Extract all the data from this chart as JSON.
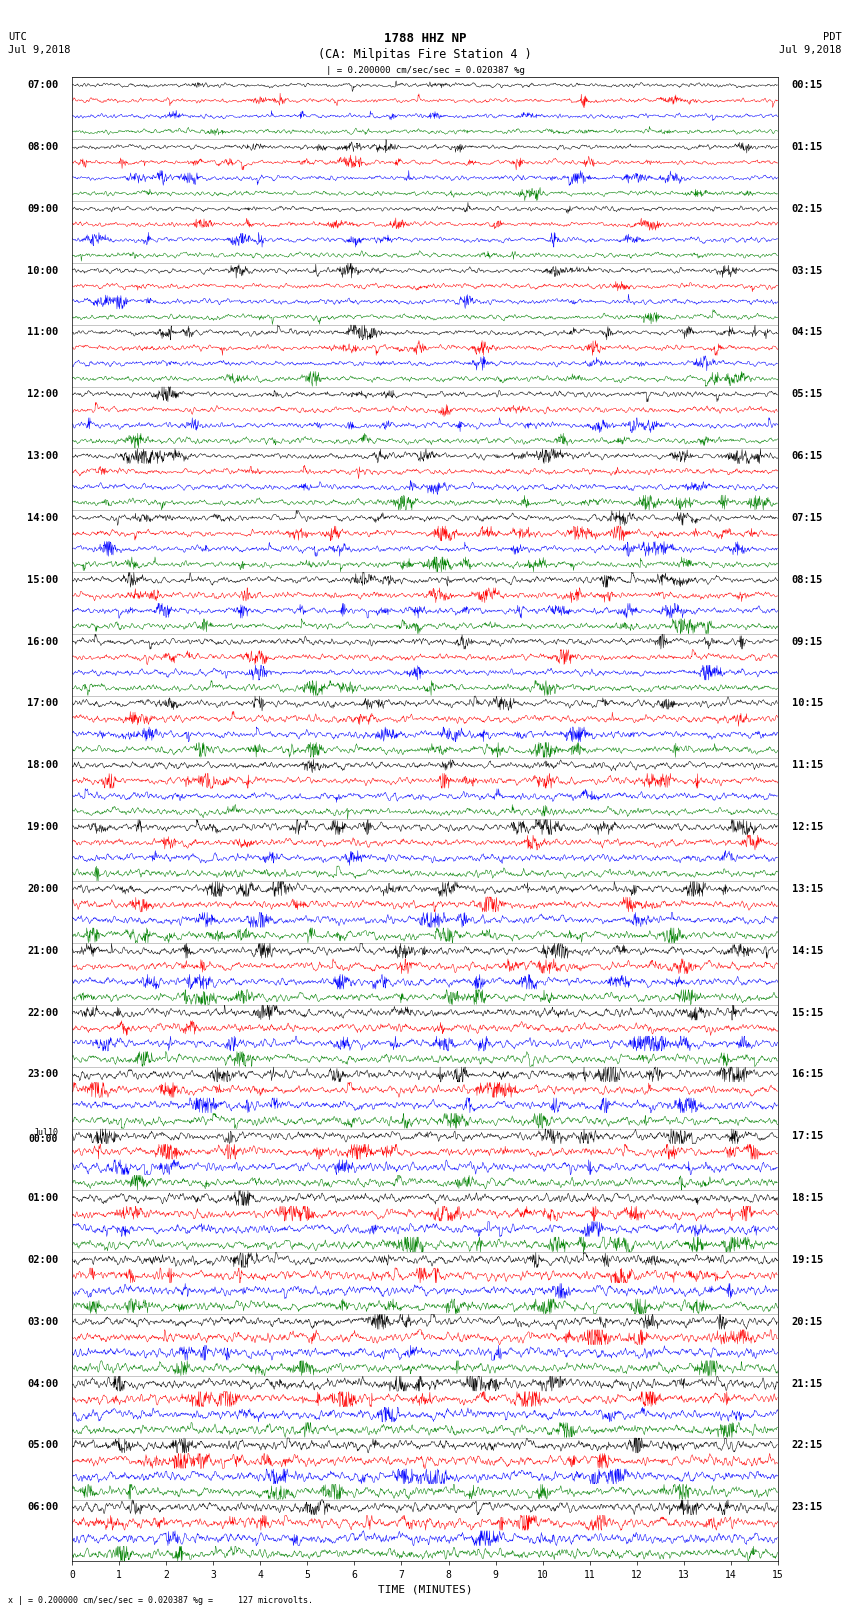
{
  "title_line1": "1788 HHZ NP",
  "title_line2": "(CA: Milpitas Fire Station 4 )",
  "left_header_line1": "UTC",
  "left_header_line2": "Jul 9,2018",
  "right_header_line1": "PDT",
  "right_header_line2": "Jul 9,2018",
  "scale_text": "| = 0.200000 cm/sec/sec = 0.020387 %g",
  "bottom_text": "x | = 0.200000 cm/sec/sec = 0.020387 %g =     127 microvolts.",
  "xlabel": "TIME (MINUTES)",
  "minutes_per_row": 15,
  "colors_cycle": [
    "black",
    "red",
    "blue",
    "green"
  ],
  "num_rows": 96,
  "background_color": "white",
  "fig_width": 8.5,
  "fig_height": 16.13,
  "left_time_labels": [
    "07:00",
    "",
    "",
    "",
    "08:00",
    "",
    "",
    "",
    "09:00",
    "",
    "",
    "",
    "10:00",
    "",
    "",
    "",
    "11:00",
    "",
    "",
    "",
    "12:00",
    "",
    "",
    "",
    "13:00",
    "",
    "",
    "",
    "14:00",
    "",
    "",
    "",
    "15:00",
    "",
    "",
    "",
    "16:00",
    "",
    "",
    "",
    "17:00",
    "",
    "",
    "",
    "18:00",
    "",
    "",
    "",
    "19:00",
    "",
    "",
    "",
    "20:00",
    "",
    "",
    "",
    "21:00",
    "",
    "",
    "",
    "22:00",
    "",
    "",
    "",
    "23:00",
    "",
    "",
    "",
    "Jul10|00:00",
    "",
    "",
    "",
    "01:00",
    "",
    "",
    "",
    "02:00",
    "",
    "",
    "",
    "03:00",
    "",
    "",
    "",
    "04:00",
    "",
    "",
    "",
    "05:00",
    "",
    "",
    "",
    "06:00",
    "",
    "",
    ""
  ],
  "right_time_labels": [
    "00:15",
    "",
    "",
    "",
    "01:15",
    "",
    "",
    "",
    "02:15",
    "",
    "",
    "",
    "03:15",
    "",
    "",
    "",
    "04:15",
    "",
    "",
    "",
    "05:15",
    "",
    "",
    "",
    "06:15",
    "",
    "",
    "",
    "07:15",
    "",
    "",
    "",
    "08:15",
    "",
    "",
    "",
    "09:15",
    "",
    "",
    "",
    "10:15",
    "",
    "",
    "",
    "11:15",
    "",
    "",
    "",
    "12:15",
    "",
    "",
    "",
    "13:15",
    "",
    "",
    "",
    "14:15",
    "",
    "",
    "",
    "15:15",
    "",
    "",
    "",
    "16:15",
    "",
    "",
    "",
    "17:15",
    "",
    "",
    "",
    "18:15",
    "",
    "",
    "",
    "19:15",
    "",
    "",
    "",
    "20:15",
    "",
    "",
    "",
    "21:15",
    "",
    "",
    "",
    "22:15",
    "",
    "",
    "",
    "23:15",
    "",
    "",
    ""
  ]
}
